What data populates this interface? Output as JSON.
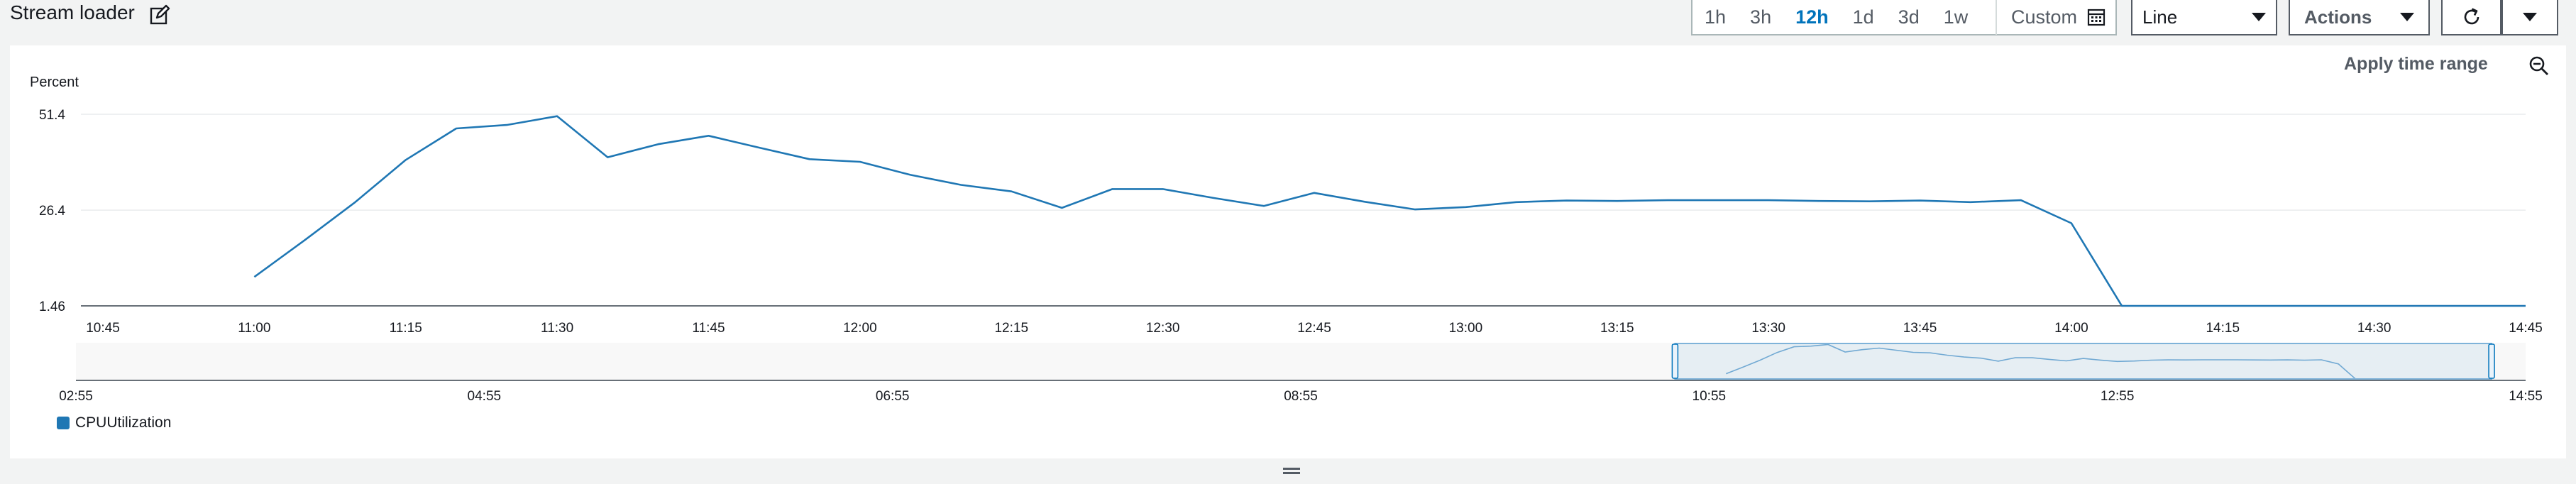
{
  "widget": {
    "title": "Stream loader",
    "apply_label": "Apply time range"
  },
  "time_ranges": [
    "1h",
    "3h",
    "12h",
    "1d",
    "3d",
    "1w"
  ],
  "selected_range": "12h",
  "custom_label": "Custom",
  "graph_type": "Line",
  "actions_label": "Actions",
  "icons": {
    "edit": "edit-icon",
    "calendar": "calendar-icon",
    "refresh": "refresh-icon",
    "zoom_out": "zoom-out-icon",
    "caret": "caret-down-icon"
  },
  "colors": {
    "series": "#1f77b4",
    "selected_tab": "#0073bb"
  },
  "chart_data": {
    "type": "line",
    "ylabel": "Percent",
    "ytick_labels": [
      "51.4",
      "26.4",
      "1.46"
    ],
    "yticks": [
      51.4,
      26.4,
      1.46
    ],
    "ylim": [
      1.46,
      51.4
    ],
    "x_ticks": [
      "10:45",
      "11:00",
      "11:15",
      "11:30",
      "11:45",
      "12:00",
      "12:15",
      "12:30",
      "12:45",
      "13:00",
      "13:15",
      "13:30",
      "13:45",
      "14:00",
      "14:15",
      "14:30",
      "14:45"
    ],
    "grid": true,
    "series": [
      {
        "name": "CPUUtilization",
        "x": [
          "11:00",
          "11:05",
          "11:10",
          "11:15",
          "11:20",
          "11:25",
          "11:30",
          "11:35",
          "11:40",
          "11:45",
          "11:50",
          "11:55",
          "12:00",
          "12:05",
          "12:10",
          "12:15",
          "12:20",
          "12:25",
          "12:30",
          "12:35",
          "12:40",
          "12:45",
          "12:50",
          "12:55",
          "13:00",
          "13:05",
          "13:10",
          "13:15",
          "13:20",
          "13:25",
          "13:30",
          "13:35",
          "13:40",
          "13:45",
          "13:50",
          "13:55",
          "14:00",
          "14:05",
          "14:10",
          "14:15",
          "14:20",
          "14:25",
          "14:30",
          "14:35",
          "14:40",
          "14:45"
        ],
        "values": [
          9.0,
          18.6,
          28.5,
          39.5,
          47.7,
          48.6,
          50.9,
          40.2,
          43.6,
          45.8,
          42.7,
          39.7,
          39.0,
          35.6,
          33.0,
          31.3,
          27.0,
          31.9,
          31.9,
          29.6,
          27.5,
          30.9,
          28.6,
          26.6,
          27.2,
          28.5,
          28.9,
          28.8,
          29.0,
          29.0,
          29.0,
          28.8,
          28.7,
          28.9,
          28.5,
          29.0,
          23.0,
          1.46,
          1.46,
          1.46,
          1.46,
          1.46,
          1.46,
          1.46,
          1.46,
          1.46
        ]
      }
    ],
    "overview": {
      "x_ticks": [
        "02:55",
        "04:55",
        "06:55",
        "08:55",
        "10:55",
        "12:55",
        "14:55"
      ],
      "selected_range": [
        "10:45",
        "14:45"
      ]
    },
    "legend": "bottom-left"
  }
}
